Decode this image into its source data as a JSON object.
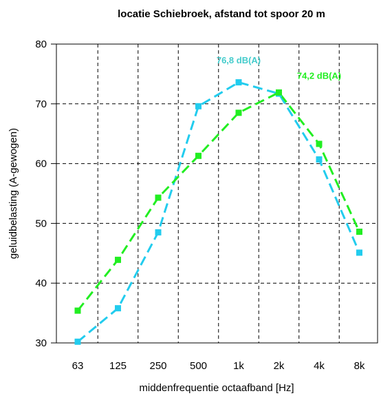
{
  "chart_data": {
    "type": "line",
    "title": "locatie Schiebroek, afstand tot spoor 20 m",
    "xlabel": "middenfrequentie octaafband [Hz]",
    "ylabel": "geluidbelasting (A-gewogen)",
    "categories": [
      "63",
      "125",
      "250",
      "500",
      "1k",
      "2k",
      "4k",
      "8k"
    ],
    "ylim": [
      30,
      80
    ],
    "yticks": [
      30,
      40,
      50,
      60,
      70,
      80
    ],
    "grid": true,
    "series": [
      {
        "color": "#22ccee",
        "values": [
          30.2,
          35.8,
          48.5,
          69.6,
          73.6,
          71.7,
          60.7,
          45.1
        ]
      },
      {
        "color": "#22ee22",
        "values": [
          35.4,
          43.9,
          54.3,
          61.3,
          68.5,
          71.9,
          63.3,
          48.6
        ]
      }
    ],
    "annotations": [
      {
        "text": "76,8 dB(A)",
        "color": "#44cccc",
        "category": "1k",
        "y": 76.8
      },
      {
        "text": "74,2 dB(A)",
        "color": "#22ee22",
        "category": "4k",
        "y": 74.2
      }
    ]
  }
}
